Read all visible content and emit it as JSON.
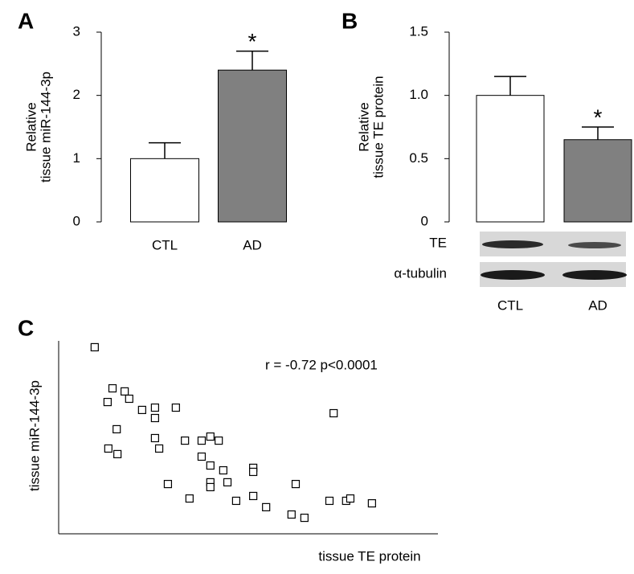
{
  "chart_data": [
    {
      "type": "bar",
      "panel_label": "A",
      "ylabel": [
        "Relative",
        "tissue miR-144-3p"
      ],
      "categories": [
        "CTL",
        "AD"
      ],
      "values": [
        1.0,
        2.4
      ],
      "errors": [
        0.25,
        0.3
      ],
      "colors": [
        "#ffffff",
        "#808080"
      ],
      "annotation": "*",
      "ylim": [
        0,
        3
      ],
      "yticks": [
        0,
        1,
        2,
        3
      ]
    },
    {
      "type": "bar",
      "panel_label": "B",
      "ylabel": [
        "Relative",
        "tissue TE protein"
      ],
      "categories": [
        "CTL",
        "AD"
      ],
      "values": [
        1.0,
        0.65
      ],
      "errors": [
        0.15,
        0.1
      ],
      "colors": [
        "#ffffff",
        "#808080"
      ],
      "annotation": "*",
      "ylim": [
        0,
        1.5
      ],
      "yticks": [
        0,
        {
          "value": 0.5,
          "label": "0.5"
        },
        {
          "value": 1.0,
          "label": "1.0"
        },
        {
          "value": 1.5,
          "label": "1.5"
        }
      ],
      "blot_labels": [
        "TE",
        "α-tubulin"
      ]
    },
    {
      "type": "scatter",
      "panel_label": "C",
      "xlabel": "tissue TE protein",
      "ylabel": "tissue miR-144-3p",
      "annotation": "r = -0.72 p<0.0001",
      "color": "#000000",
      "xlim": [
        0,
        100
      ],
      "ylim": [
        0,
        100
      ],
      "x": [
        9.5,
        14.2,
        17.4,
        12.9,
        18.6,
        22.0,
        25.4,
        30.9,
        25.4,
        15.3,
        25.4,
        33.3,
        37.7,
        40.0,
        42.2,
        13.1,
        15.5,
        26.5,
        37.7,
        40.0,
        43.4,
        51.3,
        51.3,
        28.8,
        40.0,
        44.5,
        40.0,
        62.5,
        72.5,
        34.5,
        46.8,
        51.3,
        54.7,
        61.4,
        64.8,
        71.4,
        75.8,
        76.9,
        82.6
      ],
      "values": [
        96.7,
        75.4,
        73.8,
        68.3,
        70.0,
        64.2,
        65.4,
        65.4,
        60.0,
        54.2,
        49.6,
        48.3,
        48.3,
        50.4,
        48.3,
        44.2,
        41.3,
        44.2,
        40.0,
        35.4,
        32.9,
        34.2,
        32.1,
        25.8,
        26.7,
        26.7,
        24.2,
        25.8,
        62.5,
        18.3,
        17.1,
        19.6,
        13.8,
        10.0,
        8.3,
        17.1,
        17.1,
        18.3,
        15.8
      ]
    }
  ]
}
